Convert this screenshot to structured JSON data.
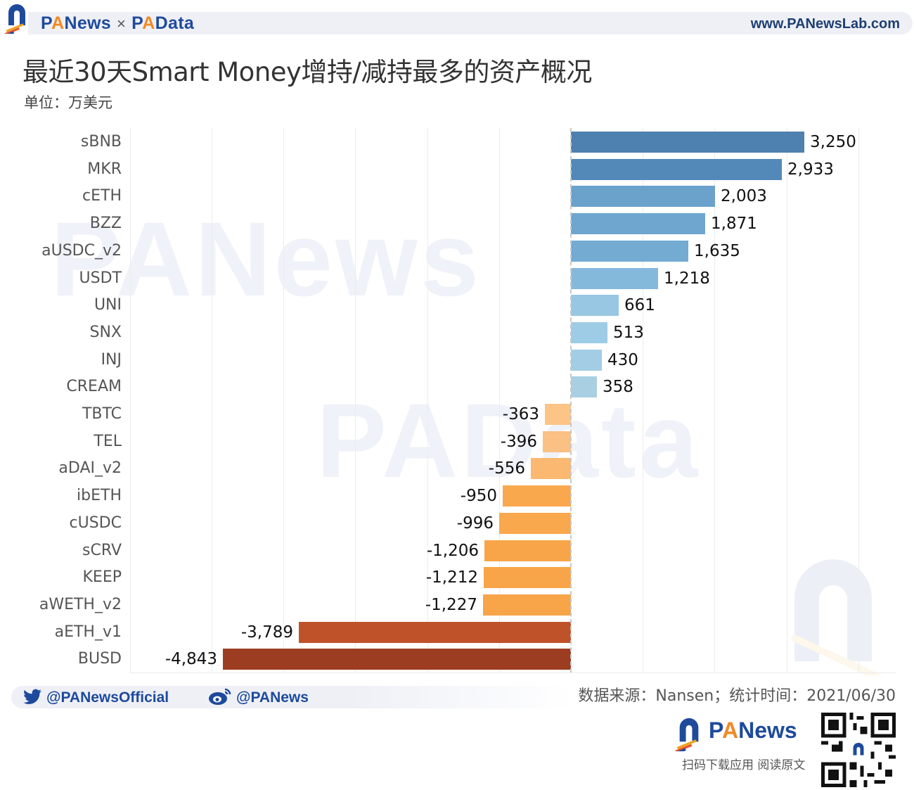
{
  "header": {
    "brand_left": "PANews",
    "brand_sep": "×",
    "brand_right": "PAData",
    "website": "www.PANewsLab.com"
  },
  "title": "最近30天Smart Money增持/减持最多的资产概况",
  "unit": "单位：万美元",
  "watermarks": [
    "PANews",
    "PAData"
  ],
  "footer": {
    "twitter": "@PANewsOfficial",
    "weibo": "@PANews",
    "source": "数据来源：Nansen；统计时间：2021/06/30",
    "app_brand": "PANews",
    "scan_text": "扫码下载应用  阅读原文"
  },
  "colors": {
    "brand_blue": "#1e4a9c",
    "brand_orange": "#f08a24"
  },
  "chart_data": {
    "type": "bar",
    "orientation": "horizontal",
    "title": "最近30天Smart Money增持/减持最多的资产概况",
    "subtitle": "单位：万美元",
    "xlabel": "",
    "ylabel": "",
    "xlim": [
      -5000,
      4500
    ],
    "grid": true,
    "grid_interval": 1000,
    "legend": null,
    "categories": [
      "sBNB",
      "MKR",
      "cETH",
      "BZZ",
      "aUSDC_v2",
      "USDT",
      "UNI",
      "SNX",
      "INJ",
      "CREAM",
      "TBTC",
      "TEL",
      "aDAI_v2",
      "ibETH",
      "cUSDC",
      "sCRV",
      "KEEP",
      "aWETH_v2",
      "aETH_v1",
      "BUSD"
    ],
    "values": [
      3250,
      2933,
      2003,
      1871,
      1635,
      1218,
      661,
      513,
      430,
      358,
      -363,
      -396,
      -556,
      -950,
      -996,
      -1206,
      -1212,
      -1227,
      -3789,
      -4843
    ],
    "value_labels": [
      "3,250",
      "2,933",
      "2,003",
      "1,871",
      "1,635",
      "1,218",
      "661",
      "513",
      "430",
      "358",
      "-363",
      "-396",
      "-556",
      "-950",
      "-996",
      "-1,206",
      "-1,212",
      "-1,227",
      "-3,789",
      "-4,843"
    ],
    "bar_colors": [
      "#4e80b0",
      "#5289b8",
      "#6aa2cb",
      "#6ea6cf",
      "#73abd3",
      "#85b9dc",
      "#97c7e3",
      "#9ecbe5",
      "#a3cde5",
      "#a9cfe3",
      "#fcc487",
      "#fbc084",
      "#fbb870",
      "#f9a84e",
      "#f9a84d",
      "#f8a448",
      "#f8a448",
      "#f8a448",
      "#c0522a",
      "#9c3d22"
    ],
    "source": "Nansen",
    "date": "2021/06/30"
  }
}
